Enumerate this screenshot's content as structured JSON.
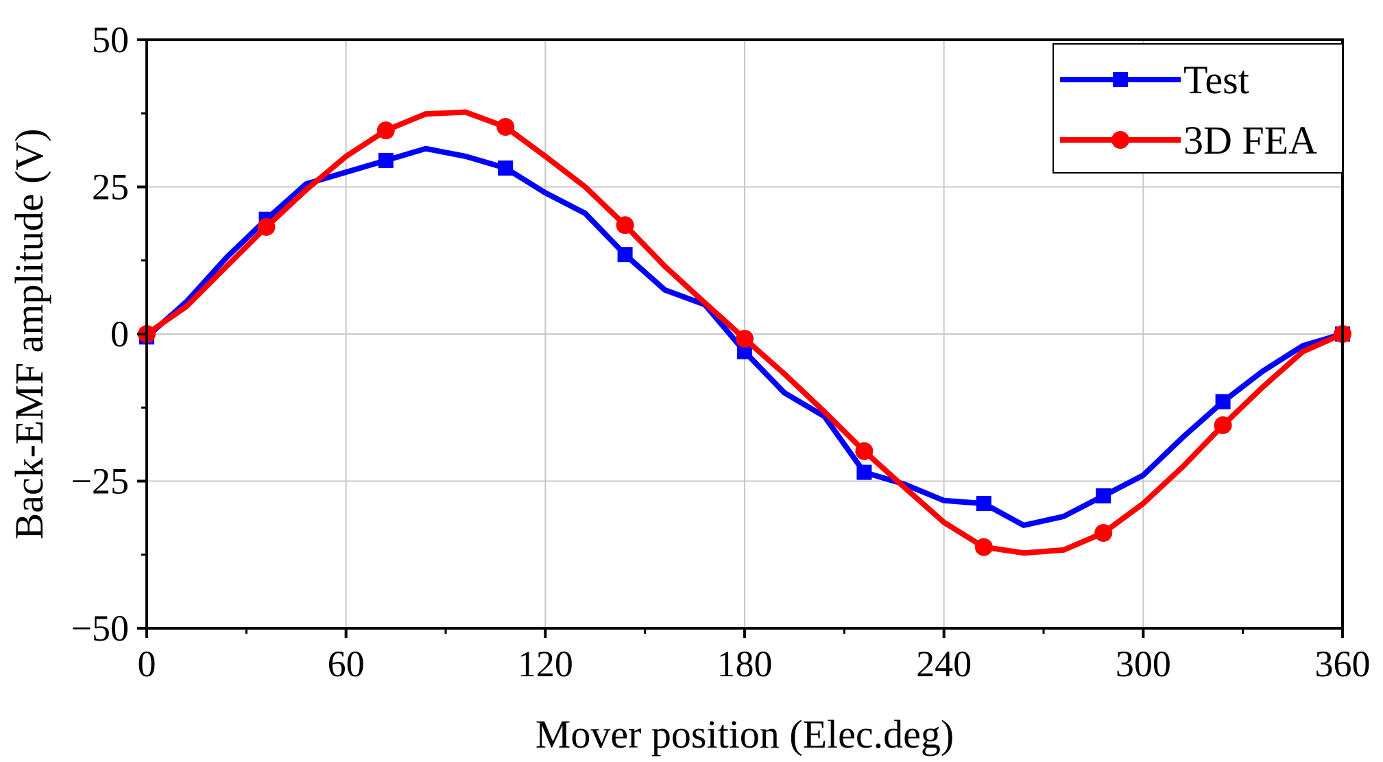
{
  "chart_data": {
    "type": "line",
    "title": "",
    "xlabel": "Mover position (Elec.deg)",
    "ylabel": "Back-EMF amplitude (V)",
    "xlim": [
      0,
      360
    ],
    "ylim": [
      -50,
      50
    ],
    "x_ticks": [
      0,
      60,
      120,
      180,
      240,
      300,
      360
    ],
    "x_tick_labels": [
      "0",
      "60",
      "120",
      "180",
      "240",
      "300",
      "360"
    ],
    "y_ticks": [
      -50,
      -25,
      0,
      25,
      50
    ],
    "y_tick_labels": [
      "−50",
      "−25",
      "0",
      "25",
      "50"
    ],
    "grid": true,
    "legend_position": "top-right",
    "series": [
      {
        "name": "Test",
        "color": "#0000ff",
        "marker": "square",
        "x": [
          0,
          12,
          24,
          36,
          48,
          60,
          72,
          84,
          96,
          108,
          120,
          132,
          144,
          156,
          168,
          180,
          192,
          204,
          216,
          228,
          240,
          252,
          264,
          276,
          288,
          300,
          312,
          324,
          336,
          348,
          360
        ],
        "y": [
          -0.5,
          5.5,
          13,
          19.5,
          25.5,
          27.5,
          29.5,
          31.5,
          30.2,
          28.2,
          24,
          20.5,
          13.5,
          7.5,
          5,
          -3,
          -10,
          -14,
          -23.5,
          -25.5,
          -28.3,
          -28.8,
          -32.5,
          -31,
          -27.5,
          -24,
          -17.5,
          -11.5,
          -6.3,
          -2,
          0
        ],
        "marker_x": [
          0,
          36,
          72,
          108,
          144,
          180,
          216,
          252,
          288,
          324,
          360
        ]
      },
      {
        "name": "3D FEA",
        "color": "#ff0000",
        "marker": "circle",
        "x": [
          0,
          12,
          24,
          36,
          48,
          60,
          72,
          84,
          96,
          108,
          120,
          132,
          144,
          156,
          168,
          180,
          192,
          204,
          216,
          228,
          240,
          252,
          264,
          276,
          288,
          300,
          312,
          324,
          336,
          348,
          360
        ],
        "y": [
          0,
          4.7,
          11.5,
          18.2,
          24.5,
          30.2,
          34.6,
          37.4,
          37.7,
          35.2,
          30.2,
          25,
          18.5,
          11.5,
          5.3,
          -0.8,
          -6.8,
          -13.2,
          -19.9,
          -26,
          -32,
          -36.2,
          -37.2,
          -36.7,
          -33.8,
          -28.8,
          -22.5,
          -15.5,
          -9,
          -3,
          0
        ],
        "marker_x": [
          0,
          36,
          72,
          108,
          144,
          180,
          216,
          252,
          288,
          324,
          360
        ]
      }
    ]
  }
}
